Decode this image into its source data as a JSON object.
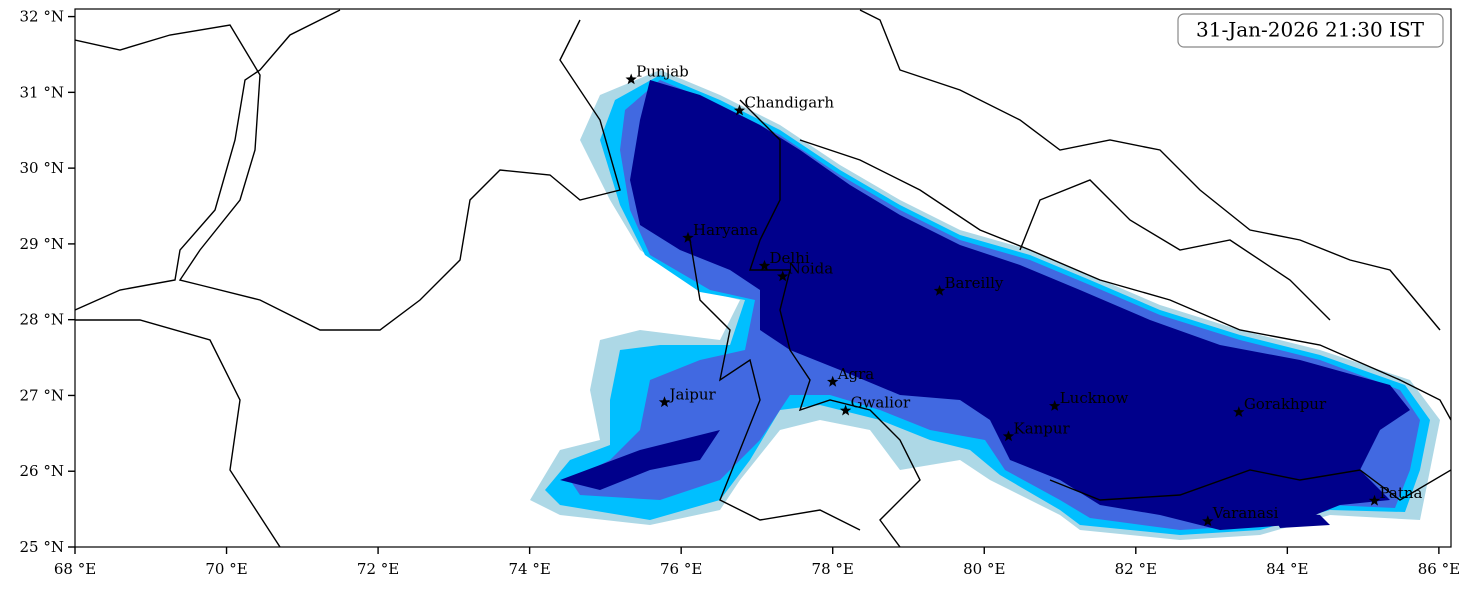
{
  "chart_data": {
    "type": "map",
    "timestamp": "31-Jan-2026 21:30 IST",
    "xlim": [
      68,
      86.16
    ],
    "ylim": [
      25,
      32.1
    ],
    "xticks": [
      {
        "value": 68,
        "label": "68 °E"
      },
      {
        "value": 70,
        "label": "70 °E"
      },
      {
        "value": 72,
        "label": "72 °E"
      },
      {
        "value": 74,
        "label": "74 °E"
      },
      {
        "value": 76,
        "label": "76 °E"
      },
      {
        "value": 78,
        "label": "78 °E"
      },
      {
        "value": 80,
        "label": "80 °E"
      },
      {
        "value": 82,
        "label": "82 °E"
      },
      {
        "value": 84,
        "label": "84 °E"
      },
      {
        "value": 86,
        "label": "86 °E"
      }
    ],
    "yticks": [
      {
        "value": 25,
        "label": "25 °N"
      },
      {
        "value": 26,
        "label": "26 °N"
      },
      {
        "value": 27,
        "label": "27 °N"
      },
      {
        "value": 28,
        "label": "28 °N"
      },
      {
        "value": 29,
        "label": "29 °N"
      },
      {
        "value": 30,
        "label": "30 °N"
      },
      {
        "value": 31,
        "label": "31 °N"
      },
      {
        "value": 32,
        "label": "32 °N"
      }
    ],
    "cities": [
      {
        "name": "Punjab",
        "lon": 75.34,
        "lat": 31.17
      },
      {
        "name": "Chandigarh",
        "lon": 76.77,
        "lat": 30.76
      },
      {
        "name": "Haryana",
        "lon": 76.09,
        "lat": 29.08
      },
      {
        "name": "Delhi",
        "lon": 77.1,
        "lat": 28.71
      },
      {
        "name": "Noida",
        "lon": 77.34,
        "lat": 28.57
      },
      {
        "name": "Bareilly",
        "lon": 79.41,
        "lat": 28.38
      },
      {
        "name": "Agra",
        "lon": 78.0,
        "lat": 27.18
      },
      {
        "name": "Gwalior",
        "lon": 78.17,
        "lat": 26.8
      },
      {
        "name": "Jaipur",
        "lon": 75.78,
        "lat": 26.91
      },
      {
        "name": "Kanpur",
        "lon": 80.32,
        "lat": 26.46
      },
      {
        "name": "Lucknow",
        "lon": 80.93,
        "lat": 26.86
      },
      {
        "name": "Gorakhpur",
        "lon": 83.36,
        "lat": 26.78
      },
      {
        "name": "Patna",
        "lon": 85.15,
        "lat": 25.61
      },
      {
        "name": "Varanasi",
        "lon": 82.95,
        "lat": 25.34
      }
    ]
  }
}
